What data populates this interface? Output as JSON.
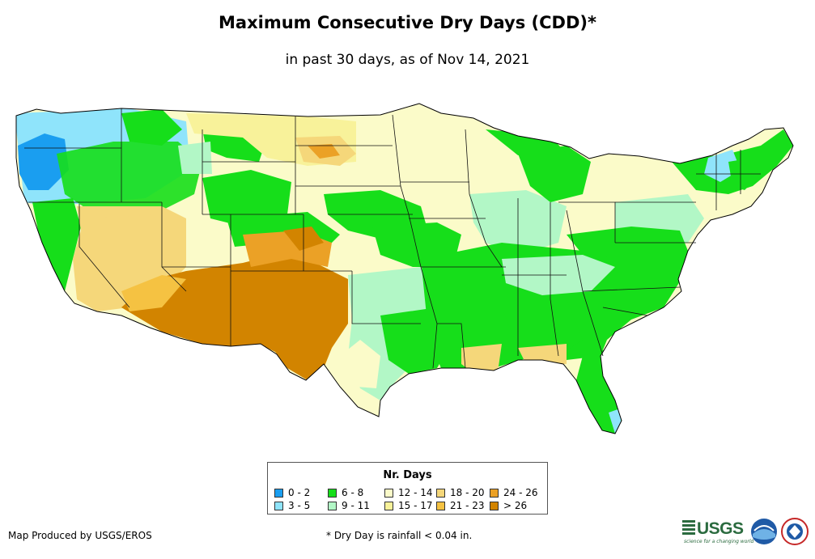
{
  "title": "Maximum Consecutive Dry Days (CDD)*",
  "subtitle": "in past 30 days, as of Nov 14, 2021",
  "legend": {
    "title": "Nr. Days",
    "items": [
      {
        "label": "0 - 2",
        "color": "#1a9ef0"
      },
      {
        "label": "3 - 5",
        "color": "#8fe4fb"
      },
      {
        "label": "6 - 8",
        "color": "#16de1a"
      },
      {
        "label": "9 - 11",
        "color": "#b2f7c6"
      },
      {
        "label": "12 - 14",
        "color": "#fbfbc9"
      },
      {
        "label": "15 - 17",
        "color": "#f8f29a"
      },
      {
        "label": "18 - 20",
        "color": "#f5d77a"
      },
      {
        "label": "21 - 23",
        "color": "#f5c242"
      },
      {
        "label": "24 - 26",
        "color": "#eba126"
      },
      {
        "label": "> 26",
        "color": "#d28400"
      }
    ]
  },
  "credit": "Map Produced by USGS/EROS",
  "footnote": "* Dry Day is rainfall < 0.04 in.",
  "logos": {
    "usgs": "USGS",
    "usgs_tagline": "science for a changing world",
    "noaa": "noaa-logo",
    "nws": "national-weather-service-logo"
  }
}
